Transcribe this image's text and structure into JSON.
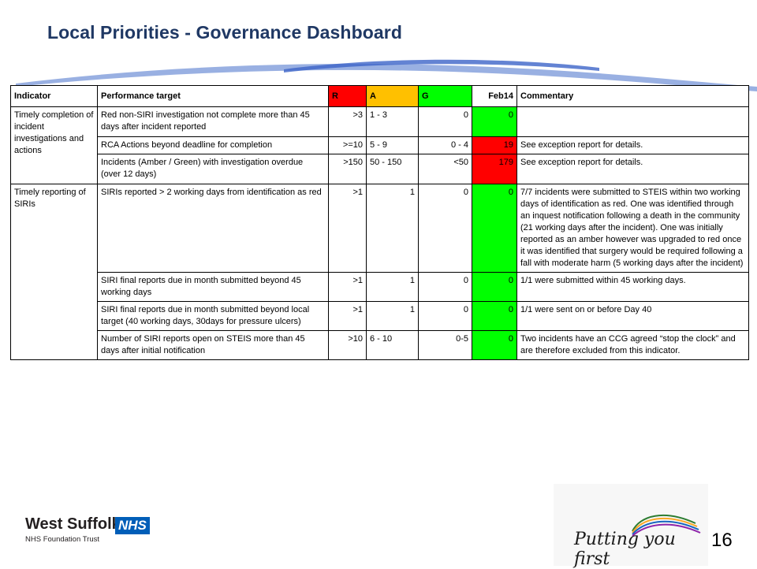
{
  "title": "Local Priorities - Governance Dashboard",
  "table": {
    "headers": {
      "indicator": "Indicator",
      "target": "Performance target",
      "r": "R",
      "a": "A",
      "g": "G",
      "month": "Feb14",
      "commentary": "Commentary"
    },
    "groups": [
      {
        "indicator": "Timely completion of incident investigations and actions",
        "rows": [
          {
            "target": "Red non-SIRI investigation not complete more than 45 days after incident reported",
            "r": ">3",
            "a": "1 - 3",
            "g": "0",
            "value": "0",
            "status": "green",
            "commentary": ""
          },
          {
            "target": "RCA Actions beyond deadline for completion",
            "r": ">=10",
            "a": "5 - 9",
            "g": "0 - 4",
            "value": "19",
            "status": "red",
            "commentary": "See exception report for details."
          },
          {
            "target": "Incidents (Amber  / Green) with investigation overdue (over 12 days)",
            "r": ">150",
            "a": "50 - 150",
            "g": "<50",
            "value": "179",
            "status": "red",
            "commentary": "See exception report for details."
          }
        ]
      },
      {
        "indicator": "Timely reporting of SIRIs",
        "rows": [
          {
            "target": "SIRIs reported > 2 working days from identification as red",
            "r": ">1",
            "a": "1",
            "g": "0",
            "value": "0",
            "status": "green",
            "commentary": "7/7 incidents were submitted to STEIS within two working days of identification as red. One was identified through an inquest notification following a death in the community (21 working days after the incident). One was initially reported as an amber  however was upgraded to red once it was identified that surgery would be required following a fall with moderate harm   (5 working days after the incident)"
          },
          {
            "target": "SIRI final reports due in month submitted beyond 45 working days",
            "r": ">1",
            "a": "1",
            "g": "0",
            "value": "0",
            "status": "green",
            "commentary": "1/1 were submitted within 45 working days."
          },
          {
            "target": "SIRI final reports due in month submitted beyond local target (40 working days, 30days for pressure ulcers)",
            "r": ">1",
            "a": "1",
            "g": "0",
            "value": "0",
            "status": "green",
            "commentary": "1/1 were sent on or before Day 40"
          },
          {
            "target": "Number of SIRI reports open on STEIS more than 45 days after initial notification",
            "r": ">10",
            "a": "6 - 10",
            "g": "0-5",
            "value": "0",
            "status": "green",
            "commentary": "Two incidents have an CCG agreed “stop the clock” and are therefore excluded from this indicator."
          }
        ]
      }
    ]
  },
  "logo": {
    "org_name": "West Suffolk",
    "nhs": "NHS",
    "subtitle": "NHS Foundation Trust",
    "slogan": "Putting you first"
  },
  "page_number": "16",
  "colors": {
    "red": "#ff0000",
    "amber": "#ffc000",
    "green": "#00ff00",
    "title": "#1f3864",
    "nhs_blue": "#005eb8"
  }
}
